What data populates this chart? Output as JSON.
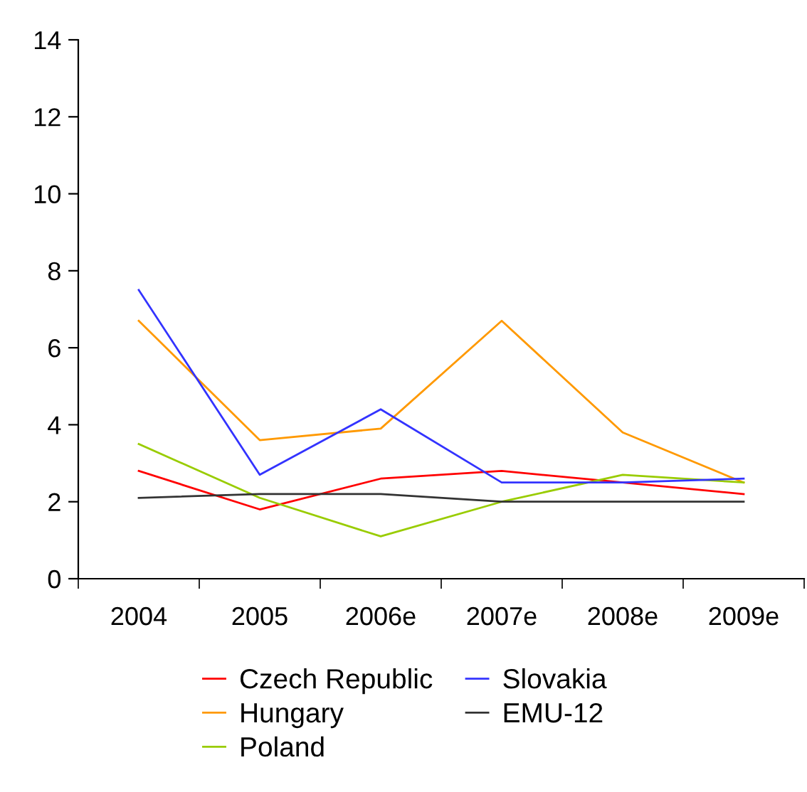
{
  "chart_data": {
    "type": "line",
    "categories": [
      "2004",
      "2005",
      "2006e",
      "2007e",
      "2008e",
      "2009e"
    ],
    "series": [
      {
        "name": "Czech Republic",
        "color": "#ff0000",
        "values": [
          2.8,
          1.8,
          2.6,
          2.8,
          2.5,
          2.2
        ]
      },
      {
        "name": "Hungary",
        "color": "#ff9900",
        "values": [
          6.7,
          3.6,
          3.9,
          6.7,
          3.8,
          2.5
        ]
      },
      {
        "name": "Poland",
        "color": "#99cc00",
        "values": [
          3.5,
          2.1,
          1.1,
          2.0,
          2.7,
          2.5
        ]
      },
      {
        "name": "Slovakia",
        "color": "#3333ff",
        "values": [
          7.5,
          2.7,
          4.4,
          2.5,
          2.5,
          2.6
        ]
      },
      {
        "name": "EMU-12",
        "color": "#333333",
        "values": [
          2.1,
          2.2,
          2.2,
          2.0,
          2.0,
          2.0
        ]
      }
    ],
    "ylim": [
      0,
      14
    ],
    "yticks": [
      0,
      2,
      4,
      6,
      8,
      10,
      12,
      14
    ],
    "grid": false,
    "legend": "bottom",
    "marker": "none",
    "line_style": "solid"
  }
}
